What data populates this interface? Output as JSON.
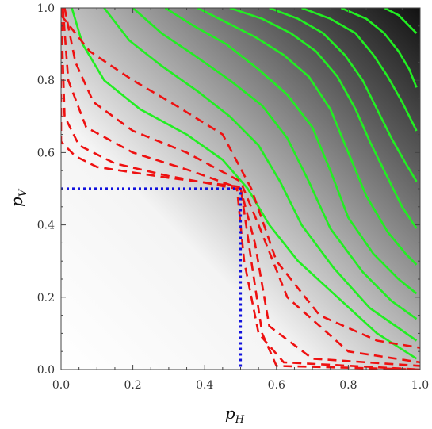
{
  "chart_data": {
    "type": "contour",
    "title": "",
    "xlabel": {
      "base": "p",
      "sub": "H"
    },
    "ylabel": {
      "base": "p",
      "sub": "V"
    },
    "xlim": [
      0,
      1
    ],
    "ylim": [
      0,
      1
    ],
    "xticks": [
      "0.0",
      "0.2",
      "0.4",
      "0.6",
      "0.8",
      "1.0"
    ],
    "yticks": [
      "0.0",
      "0.2",
      "0.4",
      "0.6",
      "0.8",
      "1.0"
    ],
    "grid": false,
    "background": {
      "type": "density",
      "from": "#ffffff",
      "to": "#111111",
      "direction": "increasing toward (1,1)"
    },
    "colors": {
      "solid": "#22ee22",
      "dashed": "#ee1111",
      "dotted": "#1111dd"
    },
    "series": [
      {
        "style": "solid",
        "points": [
          [
            0.03,
            1.0
          ],
          [
            0.06,
            0.9
          ],
          [
            0.12,
            0.8
          ],
          [
            0.22,
            0.72
          ],
          [
            0.35,
            0.65
          ],
          [
            0.45,
            0.58
          ],
          [
            0.52,
            0.5
          ],
          [
            0.58,
            0.4
          ],
          [
            0.66,
            0.3
          ],
          [
            0.77,
            0.2
          ],
          [
            0.88,
            0.1
          ],
          [
            0.99,
            0.03
          ]
        ]
      },
      {
        "style": "solid",
        "points": [
          [
            0.12,
            1.0
          ],
          [
            0.19,
            0.91
          ],
          [
            0.28,
            0.84
          ],
          [
            0.38,
            0.77
          ],
          [
            0.47,
            0.7
          ],
          [
            0.55,
            0.62
          ],
          [
            0.61,
            0.52
          ],
          [
            0.67,
            0.4
          ],
          [
            0.76,
            0.28
          ],
          [
            0.86,
            0.17
          ],
          [
            0.99,
            0.08
          ]
        ]
      },
      {
        "style": "solid",
        "points": [
          [
            0.2,
            1.0
          ],
          [
            0.28,
            0.93
          ],
          [
            0.37,
            0.87
          ],
          [
            0.47,
            0.8
          ],
          [
            0.56,
            0.73
          ],
          [
            0.63,
            0.64
          ],
          [
            0.69,
            0.52
          ],
          [
            0.75,
            0.39
          ],
          [
            0.84,
            0.27
          ],
          [
            0.92,
            0.19
          ],
          [
            0.99,
            0.14
          ]
        ]
      },
      {
        "style": "solid",
        "points": [
          [
            0.29,
            1.0
          ],
          [
            0.37,
            0.95
          ],
          [
            0.46,
            0.9
          ],
          [
            0.55,
            0.83
          ],
          [
            0.63,
            0.76
          ],
          [
            0.7,
            0.67
          ],
          [
            0.75,
            0.55
          ],
          [
            0.8,
            0.42
          ],
          [
            0.87,
            0.32
          ],
          [
            0.94,
            0.25
          ],
          [
            0.99,
            0.21
          ]
        ]
      },
      {
        "style": "solid",
        "points": [
          [
            0.38,
            1.0
          ],
          [
            0.46,
            0.96
          ],
          [
            0.54,
            0.92
          ],
          [
            0.62,
            0.87
          ],
          [
            0.69,
            0.81
          ],
          [
            0.75,
            0.72
          ],
          [
            0.8,
            0.6
          ],
          [
            0.85,
            0.48
          ],
          [
            0.91,
            0.38
          ],
          [
            0.96,
            0.32
          ],
          [
            0.99,
            0.29
          ]
        ]
      },
      {
        "style": "solid",
        "points": [
          [
            0.47,
            1.0
          ],
          [
            0.56,
            0.97
          ],
          [
            0.64,
            0.93
          ],
          [
            0.71,
            0.88
          ],
          [
            0.77,
            0.81
          ],
          [
            0.82,
            0.72
          ],
          [
            0.86,
            0.63
          ],
          [
            0.91,
            0.53
          ],
          [
            0.95,
            0.45
          ],
          [
            0.99,
            0.39
          ]
        ]
      },
      {
        "style": "solid",
        "points": [
          [
            0.58,
            1.0
          ],
          [
            0.66,
            0.97
          ],
          [
            0.73,
            0.93
          ],
          [
            0.79,
            0.87
          ],
          [
            0.84,
            0.8
          ],
          [
            0.88,
            0.72
          ],
          [
            0.92,
            0.64
          ],
          [
            0.96,
            0.57
          ],
          [
            0.99,
            0.52
          ]
        ]
      },
      {
        "style": "solid",
        "points": [
          [
            0.67,
            1.0
          ],
          [
            0.75,
            0.97
          ],
          [
            0.82,
            0.93
          ],
          [
            0.87,
            0.87
          ],
          [
            0.91,
            0.81
          ],
          [
            0.95,
            0.74
          ],
          [
            0.99,
            0.66
          ]
        ]
      },
      {
        "style": "solid",
        "points": [
          [
            0.78,
            1.0
          ],
          [
            0.85,
            0.97
          ],
          [
            0.9,
            0.93
          ],
          [
            0.94,
            0.88
          ],
          [
            0.97,
            0.83
          ],
          [
            0.99,
            0.78
          ]
        ]
      },
      {
        "style": "solid",
        "points": [
          [
            0.9,
            1.0
          ],
          [
            0.94,
            0.98
          ],
          [
            0.97,
            0.95
          ],
          [
            0.99,
            0.93
          ]
        ]
      },
      {
        "style": "dashed",
        "points": [
          [
            0.0,
            1.0
          ],
          [
            0.0,
            0.63
          ],
          [
            0.04,
            0.59
          ],
          [
            0.1,
            0.56
          ],
          [
            0.3,
            0.53
          ],
          [
            0.5,
            0.505
          ],
          [
            0.53,
            0.3
          ],
          [
            0.56,
            0.1
          ],
          [
            0.6,
            0.01
          ],
          [
            1.0,
            0.0
          ]
        ]
      },
      {
        "style": "dashed",
        "points": [
          [
            0.0,
            1.0
          ],
          [
            0.01,
            0.7
          ],
          [
            0.05,
            0.62
          ],
          [
            0.15,
            0.57
          ],
          [
            0.3,
            0.535
          ],
          [
            0.49,
            0.5
          ],
          [
            0.51,
            0.3
          ],
          [
            0.55,
            0.1
          ],
          [
            0.62,
            0.02
          ],
          [
            1.0,
            0.0
          ]
        ]
      },
      {
        "style": "dashed",
        "points": [
          [
            0.005,
            1.0
          ],
          [
            0.02,
            0.8
          ],
          [
            0.07,
            0.67
          ],
          [
            0.2,
            0.6
          ],
          [
            0.36,
            0.55
          ],
          [
            0.5,
            0.5
          ],
          [
            0.54,
            0.35
          ],
          [
            0.58,
            0.12
          ],
          [
            0.7,
            0.03
          ],
          [
            1.0,
            0.01
          ]
        ]
      },
      {
        "style": "dashed",
        "points": [
          [
            0.01,
            1.0
          ],
          [
            0.04,
            0.85
          ],
          [
            0.09,
            0.74
          ],
          [
            0.2,
            0.66
          ],
          [
            0.35,
            0.6
          ],
          [
            0.5,
            0.52
          ],
          [
            0.55,
            0.4
          ],
          [
            0.63,
            0.2
          ],
          [
            0.8,
            0.05
          ],
          [
            1.0,
            0.02
          ]
        ]
      },
      {
        "style": "dashed",
        "points": [
          [
            0.0,
            0.98
          ],
          [
            0.08,
            0.88
          ],
          [
            0.2,
            0.8
          ],
          [
            0.32,
            0.73
          ],
          [
            0.45,
            0.65
          ],
          [
            0.53,
            0.5
          ],
          [
            0.6,
            0.3
          ],
          [
            0.72,
            0.15
          ],
          [
            0.88,
            0.08
          ],
          [
            1.0,
            0.06
          ]
        ]
      },
      {
        "style": "dotted",
        "points": [
          [
            0.0,
            0.5
          ],
          [
            0.5,
            0.5
          ],
          [
            0.5,
            0.0
          ]
        ]
      }
    ]
  }
}
